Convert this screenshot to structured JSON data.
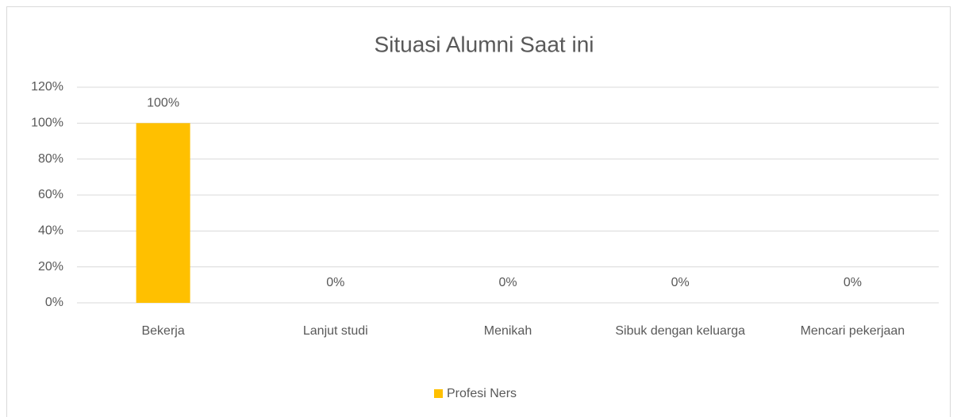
{
  "chart_data": {
    "type": "bar",
    "title": "Situasi Alumni Saat ini",
    "categories": [
      "Bekerja",
      "Lanjut studi",
      "Menikah",
      "Sibuk dengan keluarga",
      "Mencari pekerjaan"
    ],
    "series": [
      {
        "name": "Profesi Ners",
        "color": "#ffc000",
        "values": [
          100,
          0,
          0,
          0,
          0
        ],
        "value_labels": [
          "100%",
          "0%",
          "0%",
          "0%",
          "0%"
        ]
      }
    ],
    "ylim": [
      0,
      120
    ],
    "yticks": [
      {
        "value": 0,
        "label": "0%"
      },
      {
        "value": 20,
        "label": "20%"
      },
      {
        "value": 40,
        "label": "40%"
      },
      {
        "value": 60,
        "label": "60%"
      },
      {
        "value": 80,
        "label": "80%"
      },
      {
        "value": 100,
        "label": "100%"
      },
      {
        "value": 120,
        "label": "120%"
      }
    ],
    "grid": true,
    "legend": "bottom"
  }
}
